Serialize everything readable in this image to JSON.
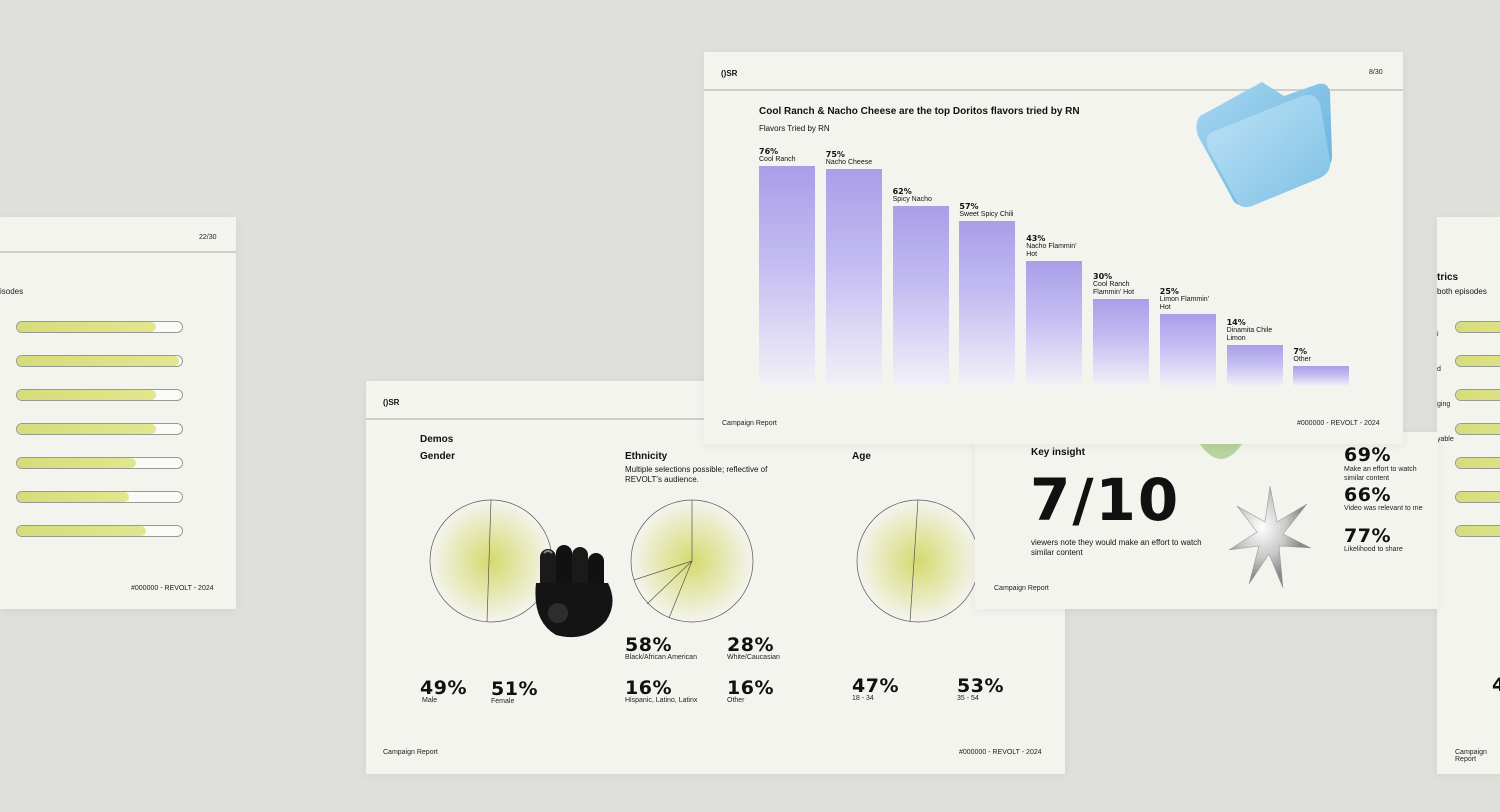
{
  "left_slide": {
    "page": "22/30",
    "subtitle_fragment": "isodes",
    "footer": "#000000 - REVOLT - 2024",
    "bars": [
      0.84,
      0.98,
      0.84,
      0.84,
      0.72,
      0.68,
      0.78
    ]
  },
  "right_slide": {
    "title_fragment": "trics",
    "subtitle_fragment": "both episodes",
    "side_letters": [
      "i",
      "d",
      "ging",
      "yable"
    ],
    "footer": "Campaign Report",
    "stat_fragment": "4"
  },
  "demos": {
    "logo": "()SR",
    "title": "Demos",
    "gender": {
      "heading": "Gender",
      "stats": [
        {
          "value": "49%",
          "label": "Male"
        },
        {
          "value": "51%",
          "label": "Female"
        }
      ]
    },
    "ethnicity": {
      "heading": "Ethnicity",
      "note": "Multiple selections possible; reflective of REVOLT's audience.",
      "stats": [
        {
          "value": "58%",
          "label": "Black/African American"
        },
        {
          "value": "28%",
          "label": "White/Caucasian"
        },
        {
          "value": "16%",
          "label": "Hispanic, Latino, Latinx"
        },
        {
          "value": "16%",
          "label": "Other"
        }
      ]
    },
    "age": {
      "heading": "Age",
      "stats": [
        {
          "value": "47%",
          "label": "18 - 34"
        },
        {
          "value": "53%",
          "label": "35 - 54"
        }
      ]
    },
    "footer_left": "Campaign Report",
    "footer_right": "#000000 - REVOLT - 2024"
  },
  "insight": {
    "title": "Key insight",
    "big": "7/10",
    "desc": "viewers note they would make an effort to watch similar content",
    "stats": [
      {
        "value": "69%",
        "label": "Make an effort to watch similar content"
      },
      {
        "value": "66%",
        "label": "Video was relevant to me"
      },
      {
        "value": "77%",
        "label": "Likelihood to share"
      }
    ],
    "footer_left": "Campaign Report",
    "footer_right": "#000000 - REVOLT - 2024"
  },
  "flavors": {
    "logo": "()SR",
    "page": "8/30",
    "footer_left": "Campaign Report",
    "footer_right": "#000000 - REVOLT - 2024"
  },
  "chart_data": {
    "type": "bar",
    "title": "Cool Ranch & Nacho Cheese are the top Doritos flavors tried by RN",
    "subtitle": "Flavors Tried by RN",
    "categories": [
      "Cool Ranch",
      "Nacho Cheese",
      "Spicy Nacho",
      "Sweet Spicy Chili",
      "Nacho Flammin' Hot",
      "Cool Ranch Flammin' Hot",
      "Limon Flammin' Hot",
      "Dinamita Chile Limon",
      "Other"
    ],
    "values": [
      76,
      75,
      62,
      57,
      43,
      30,
      25,
      14,
      7
    ],
    "value_labels": [
      "76%",
      "75%",
      "62%",
      "57%",
      "43%",
      "30%",
      "25%",
      "14%",
      "7%"
    ],
    "label_lines": [
      [
        "Cool Ranch"
      ],
      [
        "Nacho Cheese"
      ],
      [
        "Spicy Nacho"
      ],
      [
        "Sweet Spicy Chili"
      ],
      [
        "Nacho Flammin'",
        "Hot"
      ],
      [
        "Cool Ranch",
        "Flammin' Hot"
      ],
      [
        "Limon Flammin'",
        "Hot"
      ],
      [
        "Dinamita Chile",
        "Limon"
      ],
      [
        "Other"
      ]
    ],
    "ylim": [
      0,
      100
    ],
    "grid": false,
    "color": "#a99ee9"
  }
}
